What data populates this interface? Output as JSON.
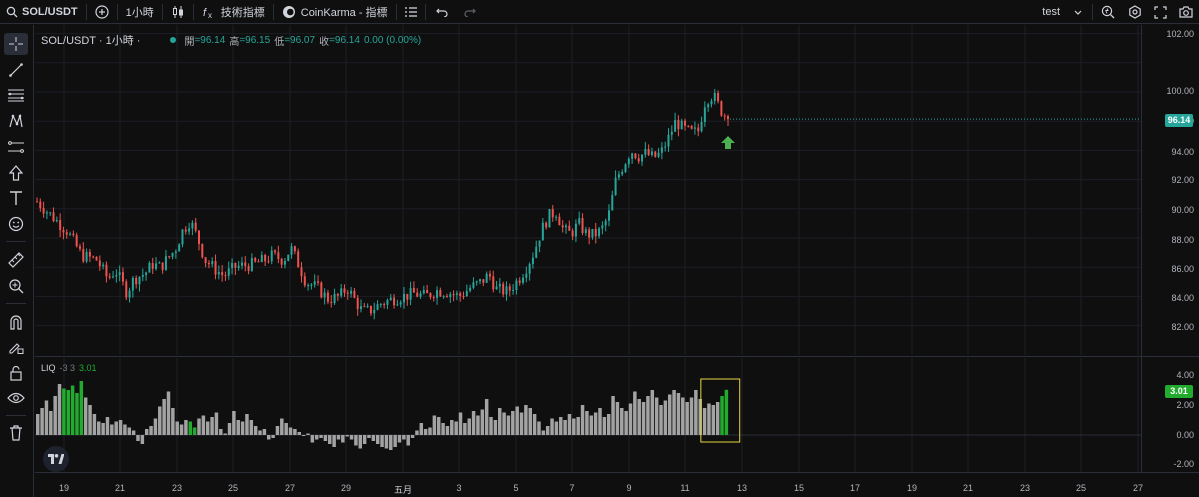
{
  "toolbar": {
    "symbol": "SOL/USDT",
    "interval": "1小時",
    "indicators_label": "技術指標",
    "script_label": "CoinKarma - 指標",
    "layout_name": "test"
  },
  "legend": {
    "symbol_label": "SOL/USDT · 1小時 ·",
    "open_key": "開",
    "open_val": "=96.14",
    "high_key": "高",
    "high_val": "=96.15",
    "low_key": "低",
    "low_val": "=96.07",
    "close_key": "收",
    "close_val": "=96.14",
    "change": "0.00 (0.00%)"
  },
  "price_axis": {
    "labels": [
      "102.00",
      "100.00",
      "98.00",
      "96.14",
      "94.00",
      "92.00",
      "90.00",
      "88.00",
      "86.00",
      "84.00",
      "82.00"
    ],
    "current_price": "96.14",
    "current_color": "#26a69a"
  },
  "liq": {
    "name": "LIQ",
    "params": "-3 3",
    "value": "3.01",
    "value_color": "#22ab2e",
    "axis_labels": [
      "4.00",
      "2.00",
      "0.00",
      "-2.00"
    ]
  },
  "time_axis": [
    "19",
    "21",
    "23",
    "25",
    "27",
    "29",
    "五月",
    "3",
    "5",
    "7",
    "9",
    "11",
    "13",
    "15",
    "17",
    "19",
    "21",
    "23",
    "25",
    "27"
  ],
  "colors": {
    "up": "#26a69a",
    "down": "#ef5350",
    "hist_neutral": "#a3a3a3",
    "hist_signal": "#22ab2e",
    "highlight_box": "#e6d43a"
  },
  "chart_data": {
    "type": "candlestick",
    "title": "SOL/USDT · 1小時",
    "ylim": [
      81,
      102.6
    ],
    "price_path": [
      [
        0,
        90.5
      ],
      [
        4,
        89.5
      ],
      [
        8,
        88.5
      ],
      [
        12,
        86.8
      ],
      [
        16,
        86.5
      ],
      [
        19,
        85.2
      ],
      [
        21,
        85.8
      ],
      [
        24,
        84.3
      ],
      [
        26,
        85.2
      ],
      [
        29,
        85.6
      ],
      [
        31,
        86.2
      ],
      [
        33,
        86.0
      ],
      [
        35,
        86.6
      ],
      [
        37,
        87.2
      ],
      [
        39,
        88.5
      ],
      [
        41,
        89.2
      ],
      [
        43,
        88.0
      ],
      [
        45,
        86.5
      ],
      [
        48,
        85.8
      ],
      [
        50,
        85.4
      ],
      [
        53,
        86.0
      ],
      [
        55,
        86.1
      ],
      [
        58,
        86.2
      ],
      [
        61,
        86.5
      ],
      [
        63,
        86.8
      ],
      [
        66,
        86.5
      ],
      [
        68,
        87.3
      ],
      [
        70,
        86.2
      ],
      [
        72,
        85.0
      ],
      [
        75,
        84.6
      ],
      [
        78,
        83.8
      ],
      [
        81,
        84.0
      ],
      [
        83,
        84.6
      ],
      [
        85,
        83.8
      ],
      [
        87,
        83.0
      ],
      [
        89,
        83.0
      ],
      [
        92,
        83.5
      ],
      [
        95,
        83.8
      ],
      [
        98,
        84.0
      ],
      [
        101,
        84.2
      ],
      [
        104,
        84.0
      ],
      [
        107,
        84.4
      ],
      [
        110,
        84.3
      ],
      [
        113,
        84.0
      ],
      [
        116,
        84.6
      ],
      [
        119,
        85.0
      ],
      [
        121,
        85.5
      ],
      [
        123,
        84.5
      ],
      [
        126,
        84.3
      ],
      [
        129,
        85.2
      ],
      [
        131,
        86.0
      ],
      [
        133,
        87.0
      ],
      [
        135,
        88.5
      ],
      [
        137,
        89.5
      ],
      [
        139,
        89.8
      ],
      [
        141,
        88.5
      ],
      [
        143,
        88.3
      ],
      [
        145,
        89.0
      ],
      [
        147,
        88.3
      ],
      [
        149,
        88.2
      ],
      [
        151,
        88.5
      ],
      [
        153,
        89.5
      ],
      [
        155,
        92.0
      ],
      [
        157,
        93.0
      ],
      [
        159,
        94.0
      ],
      [
        161,
        93.6
      ],
      [
        163,
        93.8
      ],
      [
        165,
        93.5
      ],
      [
        167,
        93.8
      ],
      [
        169,
        94.8
      ],
      [
        171,
        96.0
      ],
      [
        173,
        95.5
      ],
      [
        175,
        95.2
      ],
      [
        177,
        95.3
      ],
      [
        179,
        97.5
      ],
      [
        181,
        97.8
      ],
      [
        183,
        96.8
      ],
      [
        185,
        96.14
      ]
    ],
    "liq_values": [
      1.4,
      1.8,
      2.3,
      1.6,
      2.6,
      3.4,
      3.1,
      3.0,
      3.3,
      2.8,
      3.6,
      2.5,
      2.0,
      1.4,
      0.9,
      0.8,
      1.2,
      0.7,
      0.9,
      1.0,
      0.7,
      0.5,
      0.3,
      -0.4,
      -0.6,
      0.4,
      0.6,
      1.1,
      1.9,
      2.4,
      2.9,
      1.8,
      0.9,
      0.7,
      1.0,
      0.9,
      0.5,
      1.1,
      1.3,
      0.9,
      1.2,
      1.5,
      0.4,
      0.1,
      0.8,
      1.6,
      1.0,
      0.9,
      1.4,
      1.0,
      0.6,
      0.3,
      0.4,
      -0.3,
      -0.2,
      0.6,
      1.1,
      0.8,
      0.5,
      0.4,
      0.2,
      0.0,
      0.1,
      -0.5,
      -0.3,
      -0.2,
      -0.4,
      -0.6,
      -0.8,
      -0.3,
      -0.5,
      -0.1,
      -0.3,
      -0.7,
      -0.9,
      -0.6,
      -0.2,
      -0.4,
      -0.6,
      -0.8,
      -0.9,
      -1.0,
      -0.8,
      -0.5,
      -0.3,
      -0.7,
      -0.2,
      0.3,
      0.8,
      0.4,
      0.5,
      1.3,
      1.2,
      0.8,
      0.6,
      1.0,
      0.9,
      1.5,
      0.8,
      1.1,
      1.6,
      1.3,
      1.7,
      2.4,
      1.2,
      1.0,
      1.8,
      1.5,
      1.3,
      1.6,
      1.9,
      1.5,
      2.0,
      1.8,
      1.4,
      0.9,
      0.3,
      0.6,
      1.1,
      0.9,
      1.2,
      1.0,
      1.4,
      1.1,
      1.2,
      2.0,
      1.6,
      1.3,
      1.5,
      1.8,
      1.2,
      1.4,
      2.6,
      2.2,
      1.8,
      1.6,
      2.1,
      2.9,
      2.4,
      2.2,
      2.6,
      3.0,
      2.5,
      2.0,
      2.3,
      2.7,
      3.0,
      2.8,
      2.5,
      2.2,
      2.5,
      3.0,
      2.4,
      1.8,
      2.1,
      2.0,
      2.2,
      2.6,
      3.01
    ],
    "liq_signal_indices": [
      6,
      7,
      8,
      9,
      10,
      35,
      36,
      157,
      158,
      159
    ],
    "liq_ylim": [
      -2.4,
      4.8
    ],
    "highlight_range": [
      153,
      160
    ]
  }
}
